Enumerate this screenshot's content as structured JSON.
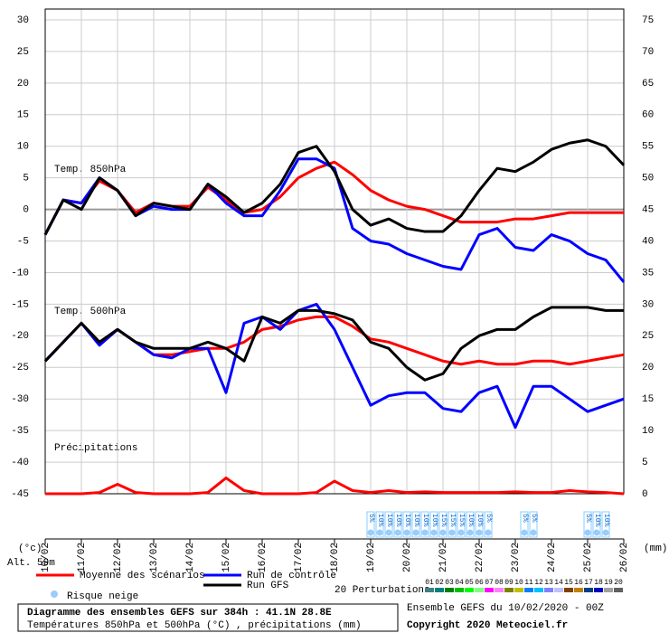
{
  "chart_data": {
    "type": "line",
    "title": "Diagramme des ensembles GEFS sur 384h : 41.1N 28.8E",
    "subtitle": "Températures 850hPa et 500hPa (°C) , précipitations (mm)",
    "run_info": "Ensemble GEFS du 10/02/2020 - 00Z",
    "copyright": "Copyright 2020 Meteociel.fr",
    "y_label": "(°c)",
    "y2_label": "(mm)",
    "altitude": "Alt. 59m",
    "annotations": [
      "Temp. 850hPa",
      "Temp. 500hPa",
      "Précipitations"
    ],
    "x": [
      0,
      12,
      24,
      36,
      48,
      60,
      72,
      84,
      96,
      108,
      120,
      132,
      144,
      156,
      168,
      180,
      192,
      204,
      216,
      228,
      240,
      252,
      264,
      276,
      288,
      300,
      312,
      324,
      336,
      348,
      360,
      372,
      384
    ],
    "xlim": [
      0,
      384
    ],
    "xticks": [
      {
        "value": 0,
        "label": "10/02"
      },
      {
        "value": 24,
        "label": "11/02"
      },
      {
        "value": 48,
        "label": "12/02"
      },
      {
        "value": 72,
        "label": "13/02"
      },
      {
        "value": 96,
        "label": "14/02"
      },
      {
        "value": 120,
        "label": "15/02"
      },
      {
        "value": 144,
        "label": "16/02"
      },
      {
        "value": 168,
        "label": "17/02"
      },
      {
        "value": 192,
        "label": "18/02"
      },
      {
        "value": 216,
        "label": "19/02"
      },
      {
        "value": 240,
        "label": "20/02"
      },
      {
        "value": 264,
        "label": "21/02"
      },
      {
        "value": 288,
        "label": "22/02"
      },
      {
        "value": 312,
        "label": "23/02"
      },
      {
        "value": 336,
        "label": "24/02"
      },
      {
        "value": 360,
        "label": "25/02"
      },
      {
        "value": 384,
        "label": "26/02"
      }
    ],
    "ylim": [
      -45,
      30
    ],
    "yticks": [
      30,
      25,
      20,
      15,
      10,
      5,
      0,
      -5,
      -10,
      -15,
      -20,
      -25,
      -30,
      -35,
      -40,
      -45
    ],
    "y2lim": [
      0,
      75
    ],
    "y2ticks": [
      75,
      70,
      65,
      60,
      55,
      50,
      45,
      40,
      35,
      30,
      25,
      20,
      15,
      10,
      5,
      0
    ],
    "grid": true,
    "series": [
      {
        "name": "Moyenne des scénarios",
        "color": "#ff0000",
        "values": [
          -4,
          1.5,
          1,
          4.5,
          3,
          -0.5,
          1,
          0.5,
          0.5,
          3.5,
          1.5,
          -0.5,
          0,
          2,
          5,
          6.5,
          7.5,
          5.5,
          3,
          1.5,
          0.5,
          0,
          -1,
          -2,
          -2,
          -2,
          -1.5,
          -1.5,
          -1,
          -0.5,
          -0.5,
          -0.5,
          -0.5
        ]
      },
      {
        "name": "Run de contrôle",
        "color": "#0000ff",
        "values": [
          -4,
          1.5,
          1,
          5,
          3,
          -1,
          0.5,
          0,
          0,
          4,
          1,
          -1,
          -1,
          3,
          8,
          8,
          6.5,
          -3,
          -5,
          -5.5,
          -7,
          -8,
          -9,
          -9.5,
          -4,
          -3,
          -6,
          -6.5,
          -4,
          -5,
          -7,
          -8,
          -11.5
        ]
      },
      {
        "name": "Run GFS",
        "color": "#000000",
        "values": [
          -4,
          1.5,
          0,
          5,
          3,
          -1,
          1,
          0.5,
          0,
          4,
          2,
          -0.5,
          1,
          4,
          9,
          10,
          6,
          0,
          -2.5,
          -1.5,
          -3,
          -3.5,
          -3.5,
          -1,
          3,
          6.5,
          6,
          7.5,
          9.5,
          10.5,
          11,
          10,
          7
        ]
      },
      {
        "color": "#ff0000",
        "values": [
          -24,
          -21,
          -18,
          -21,
          -19,
          -21,
          -23,
          -23,
          -22.5,
          -22,
          -22,
          -21,
          -19,
          -18.5,
          -17.5,
          -17,
          -17,
          -18.5,
          -20.5,
          -21,
          -22,
          -23,
          -24,
          -24.5,
          -24,
          -24.5,
          -24.5,
          -24,
          -24,
          -24.5,
          -24,
          -23.5,
          -23
        ]
      },
      {
        "color": "#0000ff",
        "values": [
          -24,
          -21,
          -18,
          -21.5,
          -19,
          -21,
          -23,
          -23.5,
          -22,
          -22,
          -29,
          -18,
          -17,
          -19,
          -16,
          -15,
          -19,
          -25,
          -31,
          -29.5,
          -29,
          -29,
          -31.5,
          -32,
          -29,
          -28,
          -34.5,
          -28,
          -28,
          -30,
          -32,
          -31,
          -30
        ]
      },
      {
        "color": "#000000",
        "values": [
          -24,
          -21,
          -18,
          -21,
          -19,
          -21,
          -22,
          -22,
          -22,
          -21,
          -22,
          -24,
          -17,
          -18,
          -16,
          -16,
          -16.5,
          -17.5,
          -21,
          -22,
          -25,
          -27,
          -26,
          -22,
          -20,
          -19,
          -19,
          -17,
          -15.5,
          -15.5,
          -15.5,
          -16,
          -16
        ]
      },
      {
        "color": "#ff0000",
        "axis": "y2",
        "values": [
          0,
          0,
          0,
          0.2,
          1.5,
          0.2,
          0,
          0,
          0,
          0.2,
          2.5,
          0.5,
          0,
          0,
          0,
          0.2,
          2,
          0.5,
          0.2,
          0.5,
          0.2,
          0.3,
          0.2,
          0.2,
          0.2,
          0.2,
          0.3,
          0.2,
          0.2,
          0.5,
          0.3,
          0.2,
          0
        ]
      }
    ],
    "snow_risk": {
      "name": "Risque neige",
      "x": [
        216,
        222,
        228,
        234,
        240,
        246,
        252,
        258,
        264,
        270,
        276,
        282,
        288,
        294,
        318,
        324,
        360,
        366,
        372
      ],
      "labels": [
        "5%",
        "10%",
        "10%",
        "10%",
        "10%",
        "10%",
        "10%",
        "10%",
        "15%",
        "15%",
        "15%",
        "10%",
        "10%",
        "5%",
        "5%",
        "5%",
        "5%",
        "10%",
        "10%"
      ]
    },
    "perturbations": {
      "name": "20 Perturbations",
      "labels": [
        "01",
        "02",
        "03",
        "04",
        "05",
        "06",
        "07",
        "08",
        "09",
        "10",
        "11",
        "12",
        "13",
        "14",
        "15",
        "16",
        "17",
        "18",
        "19",
        "20"
      ],
      "colors": [
        "#408080",
        "#008080",
        "#008000",
        "#00c000",
        "#00ff00",
        "#80ff80",
        "#ff00ff",
        "#ff80ff",
        "#808000",
        "#c0c000",
        "#0080ff",
        "#00c0ff",
        "#8080ff",
        "#c0c0ff",
        "#804000",
        "#c08000",
        "#004080",
        "#0000c0",
        "#a0a0a0",
        "#606060"
      ]
    }
  }
}
